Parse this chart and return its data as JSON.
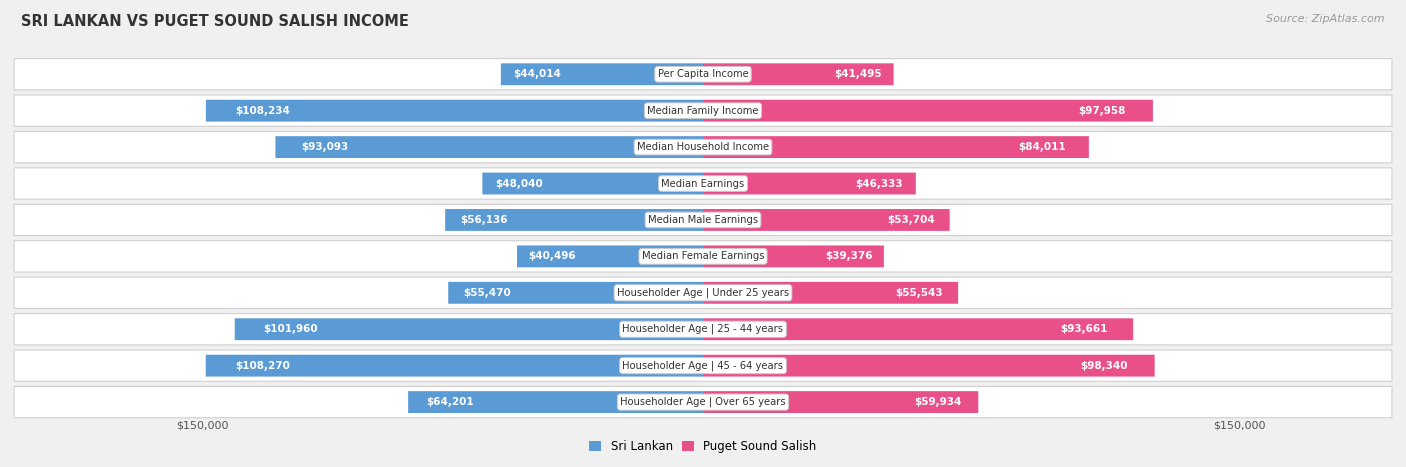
{
  "title": "SRI LANKAN VS PUGET SOUND SALISH INCOME",
  "source": "Source: ZipAtlas.com",
  "categories": [
    "Per Capita Income",
    "Median Family Income",
    "Median Household Income",
    "Median Earnings",
    "Median Male Earnings",
    "Median Female Earnings",
    "Householder Age | Under 25 years",
    "Householder Age | 25 - 44 years",
    "Householder Age | 45 - 64 years",
    "Householder Age | Over 65 years"
  ],
  "sri_lankan": [
    44014,
    108234,
    93093,
    48040,
    56136,
    40496,
    55470,
    101960,
    108270,
    64201
  ],
  "puget_sound": [
    41495,
    97958,
    84011,
    46333,
    53704,
    39376,
    55543,
    93661,
    98340,
    59934
  ],
  "sri_lankan_labels": [
    "$44,014",
    "$108,234",
    "$93,093",
    "$48,040",
    "$56,136",
    "$40,496",
    "$55,470",
    "$101,960",
    "$108,270",
    "$64,201"
  ],
  "puget_sound_labels": [
    "$41,495",
    "$97,958",
    "$84,011",
    "$46,333",
    "$53,704",
    "$39,376",
    "$55,543",
    "$93,661",
    "$98,340",
    "$59,934"
  ],
  "sri_lankan_color_dark": "#5b9bd5",
  "sri_lankan_color_light": "#9dc3e6",
  "puget_sound_color_dark": "#e9508a",
  "puget_sound_color_light": "#f4a6c6",
  "max_value": 150000,
  "background_color": "#f0f0f0",
  "row_bg_color": "#ffffff",
  "category_box_color": "#ffffff",
  "left_axis_label": "$150,000",
  "right_axis_label": "$150,000",
  "inside_label_threshold": 27000
}
